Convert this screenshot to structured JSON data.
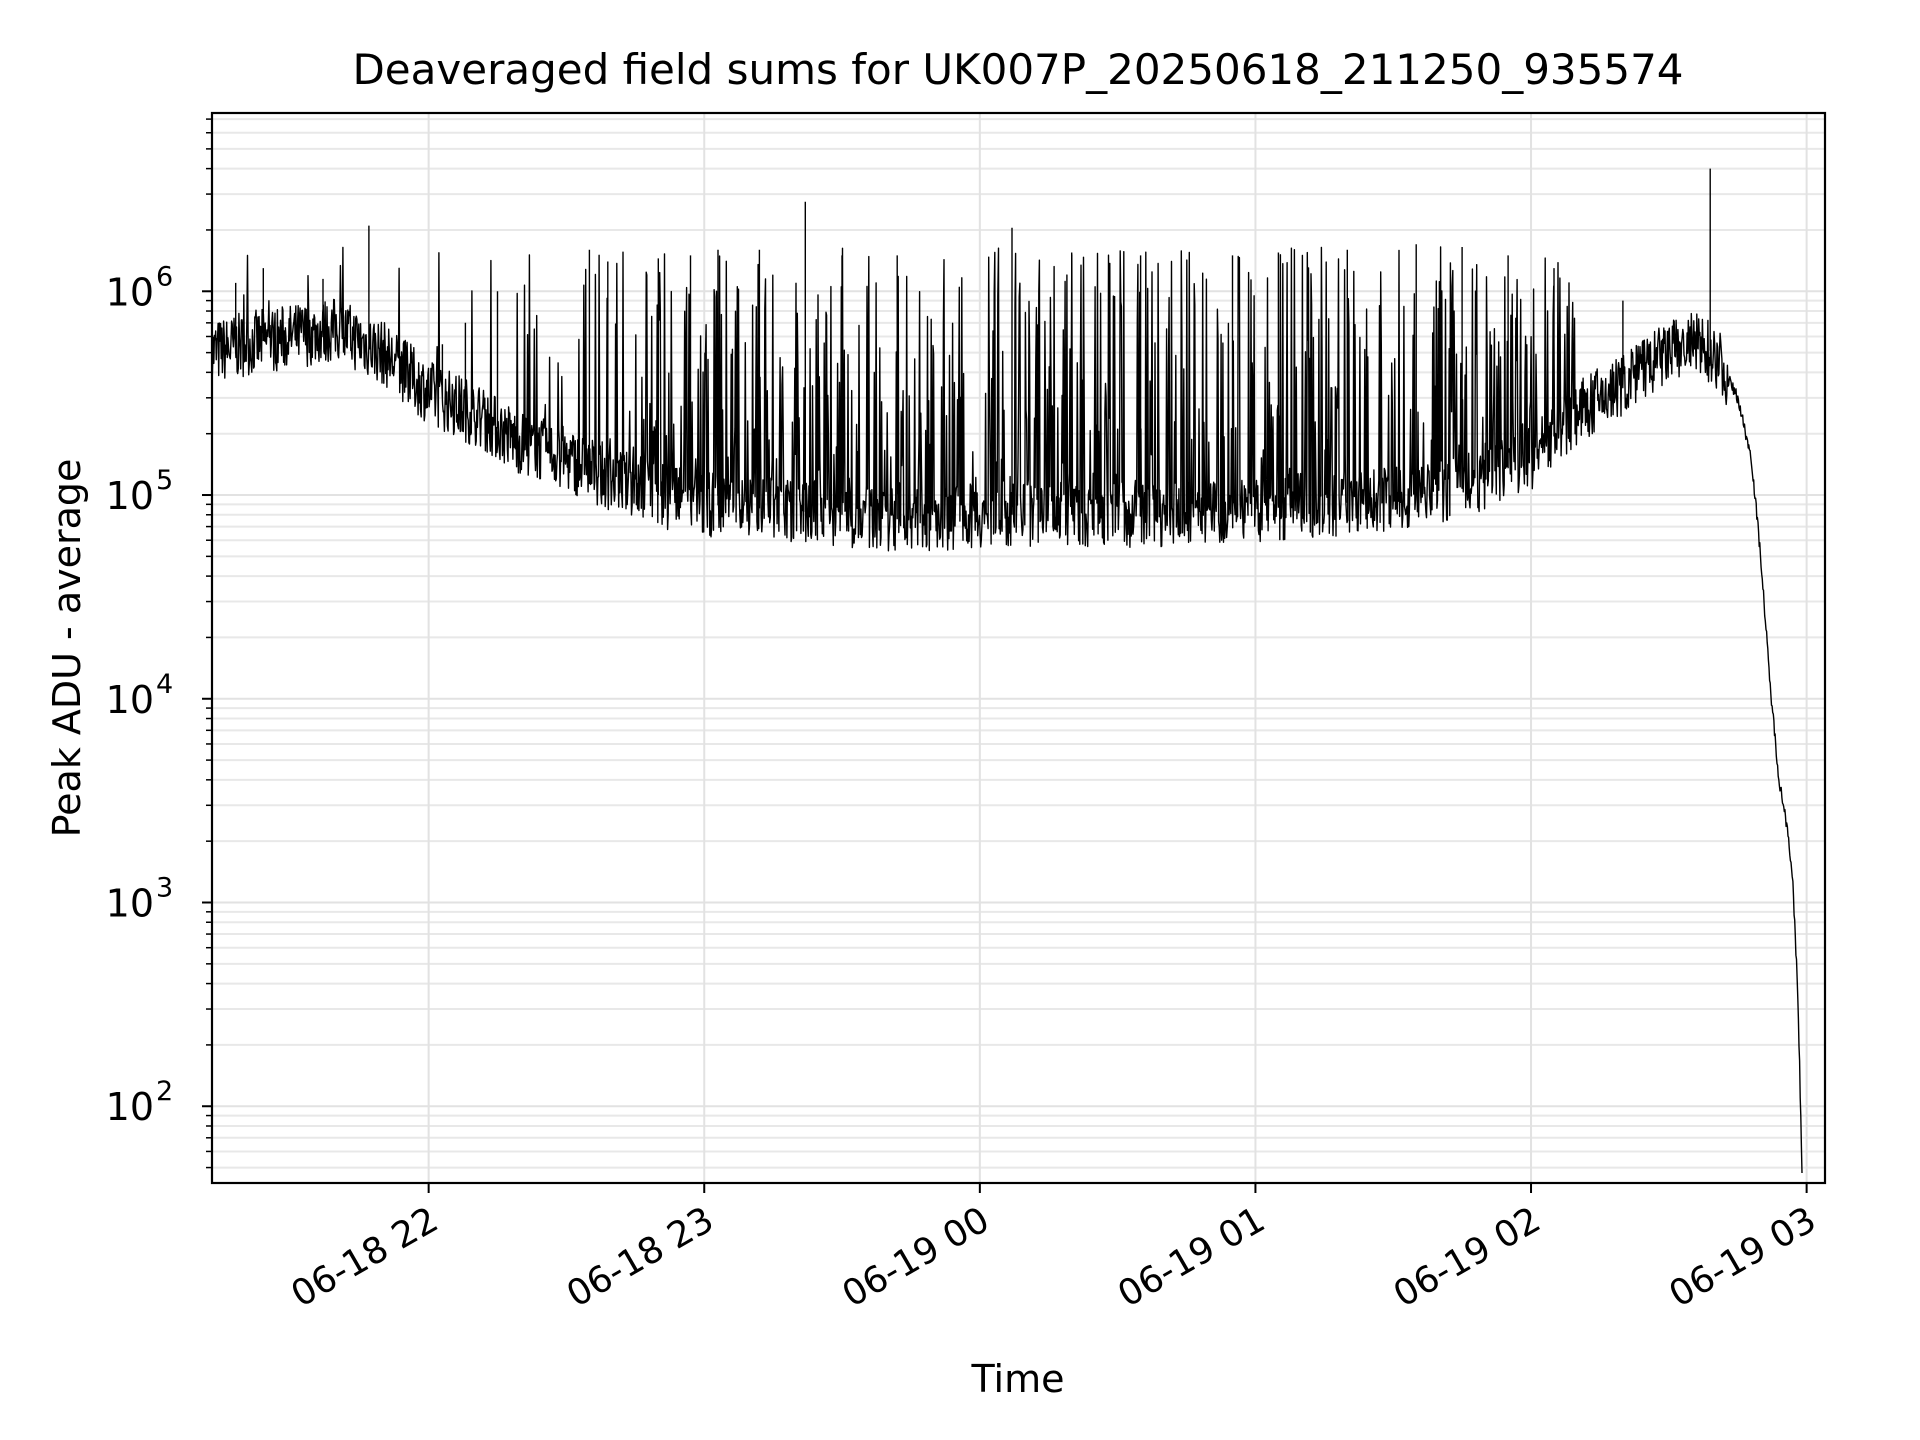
{
  "chart_data": {
    "type": "line",
    "title": "Deaveraged field sums for UK007P_20250618_211250_935574",
    "xlabel": "Time",
    "ylabel": "Peak ADU - average",
    "yscale": "log",
    "ylim": [
      42,
      7500000
    ],
    "xlim": [
      "2025-06-18 21:12:50",
      "2025-06-19 03:04:00"
    ],
    "x_ticks": [
      {
        "label": "06-18 22",
        "value": "2025-06-18 22:00:00"
      },
      {
        "label": "06-18 23",
        "value": "2025-06-18 23:00:00"
      },
      {
        "label": "06-19 00",
        "value": "2025-06-19 00:00:00"
      },
      {
        "label": "06-19 01",
        "value": "2025-06-19 01:00:00"
      },
      {
        "label": "06-19 02",
        "value": "2025-06-19 02:00:00"
      },
      {
        "label": "06-19 03",
        "value": "2025-06-19 03:00:00"
      }
    ],
    "y_ticks": [
      {
        "base": "10",
        "exp": "2",
        "value": 100
      },
      {
        "base": "10",
        "exp": "3",
        "value": 1000
      },
      {
        "base": "10",
        "exp": "4",
        "value": 10000
      },
      {
        "base": "10",
        "exp": "5",
        "value": 100000
      },
      {
        "base": "10",
        "exp": "6",
        "value": 1000000
      }
    ],
    "grid": true,
    "line_color": "#000000",
    "series": [
      {
        "x": [
          "2025-06-18 21:12:50",
          "2025-06-18 21:20:00",
          "2025-06-18 21:30:00",
          "2025-06-18 21:40:00",
          "2025-06-18 21:50:00",
          "2025-06-18 21:55:00",
          "2025-06-18 22:00:00",
          "2025-06-18 22:10:00",
          "2025-06-18 22:20:00",
          "2025-06-18 22:30:00",
          "2025-06-18 22:40:00",
          "2025-06-18 22:50:00",
          "2025-06-18 23:00:00",
          "2025-06-18 23:15:00",
          "2025-06-18 23:30:00",
          "2025-06-18 23:45:00",
          "2025-06-19 00:00:00",
          "2025-06-19 00:15:00",
          "2025-06-19 00:30:00",
          "2025-06-19 00:45:00",
          "2025-06-19 01:00:00",
          "2025-06-19 01:15:00",
          "2025-06-19 01:30:00",
          "2025-06-19 01:45:00",
          "2025-06-19 02:00:00",
          "2025-06-19 02:10:00",
          "2025-06-19 02:20:00",
          "2025-06-19 02:30:00",
          "2025-06-19 02:35:00",
          "2025-06-19 02:40:00",
          "2025-06-19 02:45:00",
          "2025-06-19 02:48:00",
          "2025-06-19 02:50:00",
          "2025-06-19 02:52:00",
          "2025-06-19 02:54:00",
          "2025-06-19 02:56:00",
          "2025-06-19 02:57:00",
          "2025-06-19 02:58:00",
          "2025-06-19 02:58:30",
          "2025-06-19 02:59:00"
        ],
        "y": [
          500000,
          550000,
          600000,
          650000,
          500000,
          400000,
          320000,
          250000,
          180000,
          150000,
          120000,
          100000,
          90000,
          85000,
          80000,
          75000,
          80000,
          80000,
          80000,
          80000,
          85000,
          90000,
          95000,
          110000,
          150000,
          250000,
          350000,
          500000,
          550000,
          500000,
          300000,
          150000,
          50000,
          12000,
          4000,
          2200,
          1200,
          400,
          150,
          45
        ],
        "spikes": [
          [
            "2025-06-18 21:18:00",
            1100000
          ],
          [
            "2025-06-18 21:24:00",
            1300000
          ],
          [
            "2025-06-18 21:37:00",
            1150000
          ],
          [
            "2025-06-18 21:47:00",
            2100000
          ],
          [
            "2025-06-18 22:03:00",
            550000
          ],
          [
            "2025-06-18 22:08:00",
            700000
          ],
          [
            "2025-06-18 22:15:00",
            1000000
          ],
          [
            "2025-06-18 22:35:00",
            1600000
          ],
          [
            "2025-06-18 22:39:00",
            1400000
          ],
          [
            "2025-06-18 22:50:00",
            1450000
          ],
          [
            "2025-06-18 22:57:00",
            1500000
          ],
          [
            "2025-06-18 23:03:00",
            1600000
          ],
          [
            "2025-06-18 23:12:00",
            1600000
          ],
          [
            "2025-06-18 23:22:00",
            2750000
          ],
          [
            "2025-06-18 23:30:00",
            1500000
          ],
          [
            "2025-06-18 23:42:00",
            1500000
          ],
          [
            "2025-06-19 00:07:00",
            2050000
          ],
          [
            "2025-06-19 00:20:00",
            1550000
          ],
          [
            "2025-06-19 00:35:00",
            1500000
          ],
          [
            "2025-06-19 00:55:00",
            1500000
          ],
          [
            "2025-06-19 01:05:00",
            1550000
          ],
          [
            "2025-06-19 01:20:00",
            1600000
          ],
          [
            "2025-06-19 01:35:00",
            1700000
          ],
          [
            "2025-06-19 01:45:00",
            1650000
          ],
          [
            "2025-06-19 01:55:00",
            1500000
          ],
          [
            "2025-06-19 02:05:00",
            1300000
          ],
          [
            "2025-06-19 02:20:00",
            900000
          ],
          [
            "2025-06-19 02:39:00",
            4000000
          ]
        ]
      }
    ]
  }
}
